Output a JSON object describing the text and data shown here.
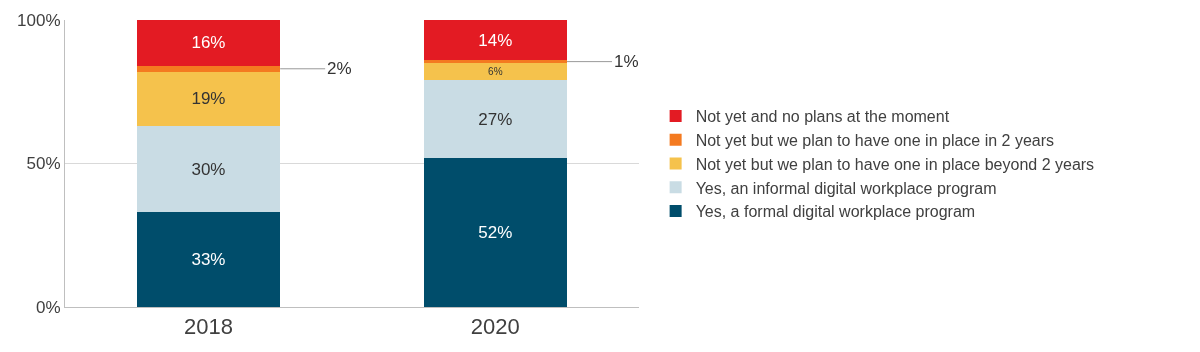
{
  "chart_data": {
    "type": "bar",
    "stacked": true,
    "categories": [
      "2018",
      "2020"
    ],
    "series": [
      {
        "name": "Yes, a formal digital workplace program",
        "color": "#004d6b",
        "values": [
          33,
          52
        ],
        "value_labels": [
          "33%",
          "52%"
        ]
      },
      {
        "name": "Yes, an informal digital workplace program",
        "color": "#c9dce4",
        "values": [
          30,
          27
        ],
        "value_labels": [
          "30%",
          "27%"
        ]
      },
      {
        "name": "Not yet but we plan to have one in place beyond 2 years",
        "color": "#f5c24c",
        "values": [
          19,
          6
        ],
        "value_labels": [
          "19%",
          "6%"
        ]
      },
      {
        "name": "Not yet but we plan to have one in place in 2 years",
        "color": "#f47a20",
        "values": [
          2,
          1
        ],
        "value_labels": [
          "2%",
          "1%"
        ]
      },
      {
        "name": "Not yet and no plans at the moment",
        "color": "#e31b23",
        "values": [
          16,
          14
        ],
        "value_labels": [
          "16%",
          "14%"
        ]
      }
    ],
    "ylim": [
      0,
      100
    ],
    "yticks": [
      {
        "value": 0,
        "label": "0%"
      },
      {
        "value": 50,
        "label": "50%"
      },
      {
        "value": 100,
        "label": "100%"
      }
    ],
    "grid": "y",
    "legend": "right"
  }
}
